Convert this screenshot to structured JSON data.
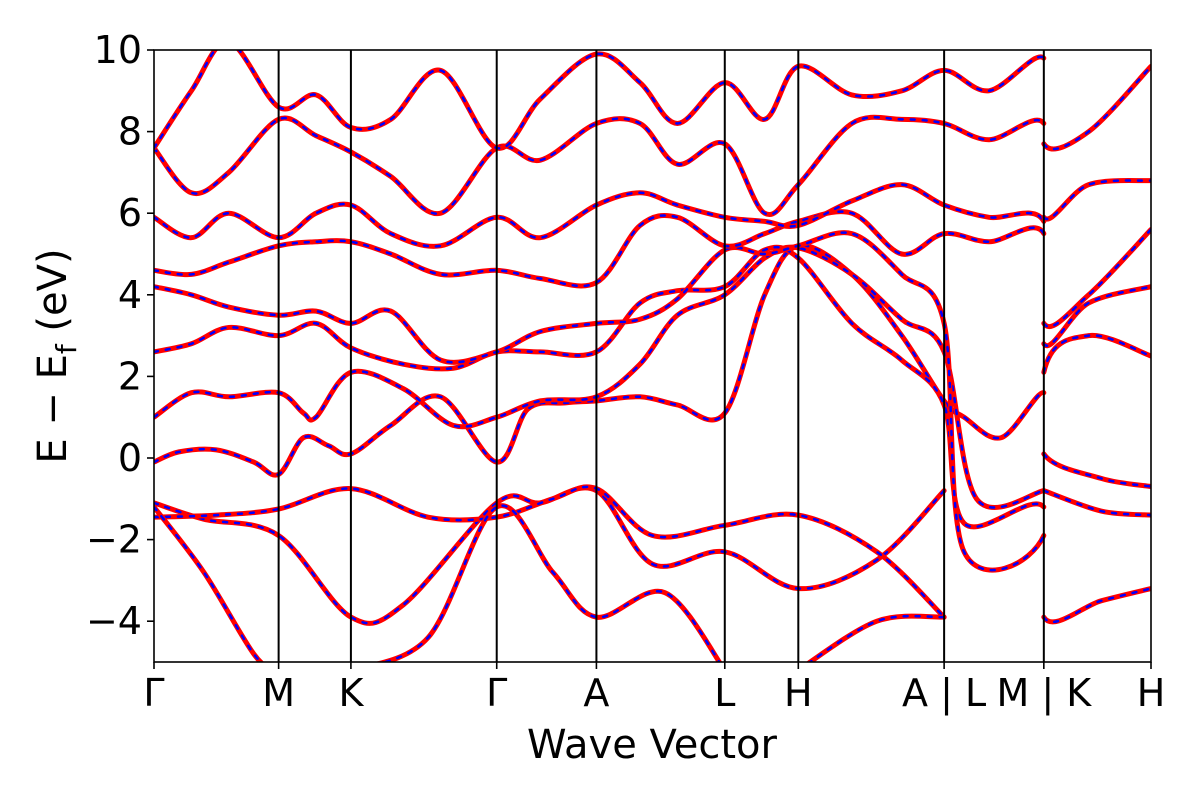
{
  "chart_data": {
    "type": "line",
    "xlabel": "Wave Vector",
    "ylabel": "E − E",
    "ylabel_sub": "f",
    "ylabel_unit": "(eV)",
    "ylim": [
      -5,
      10
    ],
    "xlim": [
      0,
      8
    ],
    "yticks": [
      -4,
      -2,
      0,
      2,
      4,
      6,
      8,
      10
    ],
    "ytick_labels": [
      "−4",
      "−2",
      "0",
      "2",
      "4",
      "6",
      "8",
      "10"
    ],
    "kpoint_labels": [
      "Γ",
      "M",
      "K",
      "Γ",
      "A",
      "L",
      "H",
      "A | L",
      "M | K",
      "H"
    ],
    "kpoint_positions": [
      0,
      1,
      1.58,
      2.75,
      3.55,
      4.58,
      5.17,
      6.34,
      7.14,
      8
    ],
    "grid": false,
    "colors": {
      "primary": "#ff0000",
      "overlay": "#0000ff"
    },
    "series": [
      {
        "points": [
          [
            0,
            -0.1
          ],
          [
            0.2,
            0.15
          ],
          [
            0.5,
            0.2
          ],
          [
            0.8,
            -0.1
          ],
          [
            1,
            -0.4
          ],
          [
            1.2,
            0.5
          ],
          [
            1.4,
            0.3
          ],
          [
            1.58,
            0.1
          ],
          [
            1.9,
            0.8
          ],
          [
            2.3,
            1.5
          ],
          [
            2.75,
            -0.1
          ],
          [
            3.0,
            1.2
          ],
          [
            3.3,
            1.35
          ],
          [
            3.55,
            1.4
          ],
          [
            3.9,
            1.5
          ],
          [
            4.2,
            1.3
          ],
          [
            4.58,
            1.1
          ],
          [
            4.9,
            4.0
          ],
          [
            5.17,
            5.2
          ],
          [
            5.6,
            4.5
          ],
          [
            6.0,
            3.0
          ],
          [
            6.34,
            1.4
          ],
          [
            6.5,
            1.0
          ],
          [
            6.8,
            0.5
          ],
          [
            7.14,
            1.6
          ],
          [
            7.14,
            0.1
          ],
          [
            7.6,
            -0.5
          ],
          [
            8,
            -0.7
          ]
        ]
      },
      {
        "points": [
          [
            0,
            1.0
          ],
          [
            0.3,
            1.6
          ],
          [
            0.6,
            1.5
          ],
          [
            1,
            1.6
          ],
          [
            1.2,
            1.1
          ],
          [
            1.3,
            1.0
          ],
          [
            1.58,
            2.1
          ],
          [
            2.0,
            1.7
          ],
          [
            2.4,
            0.8
          ],
          [
            2.75,
            1.0
          ],
          [
            3.1,
            1.4
          ],
          [
            3.55,
            1.5
          ],
          [
            3.9,
            2.3
          ],
          [
            4.2,
            3.5
          ],
          [
            4.58,
            4.0
          ],
          [
            4.9,
            4.9
          ],
          [
            5.17,
            5.15
          ],
          [
            5.6,
            4.5
          ],
          [
            6.0,
            3.4
          ],
          [
            6.34,
            2.6
          ],
          [
            6.6,
            -1.0
          ],
          [
            7.14,
            -0.8
          ],
          [
            7.14,
            -0.8
          ],
          [
            7.6,
            -1.3
          ],
          [
            8,
            -1.4
          ]
        ]
      },
      {
        "points": [
          [
            0,
            2.6
          ],
          [
            0.3,
            2.8
          ],
          [
            0.6,
            3.2
          ],
          [
            1,
            3.0
          ],
          [
            1.3,
            3.3
          ],
          [
            1.58,
            2.7
          ],
          [
            2.0,
            2.3
          ],
          [
            2.4,
            2.2
          ],
          [
            2.75,
            2.6
          ],
          [
            3.1,
            2.6
          ],
          [
            3.55,
            2.6
          ],
          [
            3.9,
            3.8
          ],
          [
            4.2,
            4.1
          ],
          [
            4.58,
            4.2
          ],
          [
            4.9,
            5.1
          ],
          [
            5.17,
            4.9
          ],
          [
            5.6,
            3.3
          ],
          [
            6.0,
            2.4
          ],
          [
            6.34,
            1.3
          ],
          [
            6.5,
            -1.6
          ],
          [
            7.14,
            -1.2
          ],
          [
            7.14,
            -3.9
          ],
          [
            7.6,
            -3.5
          ],
          [
            8,
            -3.2
          ]
        ]
      },
      {
        "points": [
          [
            0,
            4.2
          ],
          [
            0.3,
            4.0
          ],
          [
            0.6,
            3.7
          ],
          [
            1,
            3.5
          ],
          [
            1.3,
            3.6
          ],
          [
            1.58,
            3.3
          ],
          [
            1.9,
            3.6
          ],
          [
            2.3,
            2.4
          ],
          [
            2.75,
            2.6
          ],
          [
            3.1,
            3.1
          ],
          [
            3.55,
            3.3
          ],
          [
            3.9,
            3.4
          ],
          [
            4.2,
            3.9
          ],
          [
            4.58,
            5.1
          ],
          [
            4.9,
            5.0
          ],
          [
            5.17,
            5.2
          ],
          [
            5.6,
            5.5
          ],
          [
            6.0,
            4.5
          ],
          [
            6.34,
            3.3
          ],
          [
            6.5,
            -2.3
          ],
          [
            7.14,
            -1.9
          ],
          [
            7.14,
            2.1
          ],
          [
            7.5,
            3.0
          ],
          [
            8,
            2.5
          ]
        ]
      },
      {
        "points": [
          [
            0,
            4.6
          ],
          [
            0.3,
            4.5
          ],
          [
            0.6,
            4.8
          ],
          [
            1,
            5.2
          ],
          [
            1.3,
            5.3
          ],
          [
            1.58,
            5.3
          ],
          [
            1.9,
            5.0
          ],
          [
            2.3,
            4.5
          ],
          [
            2.75,
            4.6
          ],
          [
            3.1,
            4.4
          ],
          [
            3.55,
            4.3
          ],
          [
            3.9,
            5.7
          ],
          [
            4.2,
            5.9
          ],
          [
            4.58,
            5.2
          ],
          [
            4.9,
            5.5
          ],
          [
            5.17,
            5.8
          ],
          [
            5.6,
            6.0
          ],
          [
            6.0,
            5.0
          ],
          [
            6.34,
            5.5
          ],
          [
            6.7,
            5.3
          ],
          [
            7.14,
            5.5
          ],
          [
            7.14,
            2.8
          ],
          [
            7.5,
            3.8
          ],
          [
            8,
            4.2
          ]
        ]
      },
      {
        "points": [
          [
            0,
            5.9
          ],
          [
            0.3,
            5.4
          ],
          [
            0.6,
            6.0
          ],
          [
            1,
            5.4
          ],
          [
            1.3,
            6.0
          ],
          [
            1.58,
            6.2
          ],
          [
            1.9,
            5.5
          ],
          [
            2.3,
            5.2
          ],
          [
            2.75,
            5.9
          ],
          [
            3.1,
            5.4
          ],
          [
            3.55,
            6.2
          ],
          [
            3.9,
            6.5
          ],
          [
            4.2,
            6.2
          ],
          [
            4.58,
            5.9
          ],
          [
            4.9,
            5.8
          ],
          [
            5.17,
            5.7
          ],
          [
            5.6,
            6.3
          ],
          [
            6.0,
            6.7
          ],
          [
            6.34,
            6.2
          ],
          [
            6.7,
            5.9
          ],
          [
            7.14,
            5.8
          ],
          [
            7.14,
            3.3
          ],
          [
            7.5,
            4.0
          ],
          [
            8,
            5.6
          ]
        ]
      },
      {
        "points": [
          [
            0,
            7.6
          ],
          [
            0.3,
            6.5
          ],
          [
            0.6,
            7.0
          ],
          [
            1,
            8.3
          ],
          [
            1.3,
            7.9
          ],
          [
            1.58,
            7.5
          ],
          [
            1.9,
            6.9
          ],
          [
            2.3,
            6.0
          ],
          [
            2.75,
            7.6
          ],
          [
            3.1,
            7.3
          ],
          [
            3.55,
            8.2
          ],
          [
            3.9,
            8.2
          ],
          [
            4.2,
            7.2
          ],
          [
            4.58,
            7.7
          ],
          [
            4.9,
            6.0
          ],
          [
            5.17,
            6.7
          ],
          [
            5.6,
            8.2
          ],
          [
            6.0,
            8.3
          ],
          [
            6.34,
            8.2
          ],
          [
            6.7,
            7.8
          ],
          [
            7.14,
            8.2
          ],
          [
            7.14,
            5.9
          ],
          [
            7.5,
            6.7
          ],
          [
            8,
            6.8
          ]
        ]
      },
      {
        "points": [
          [
            0,
            7.6
          ],
          [
            0.3,
            9.0
          ],
          [
            0.6,
            10.2
          ],
          [
            1,
            8.6
          ],
          [
            1.3,
            8.9
          ],
          [
            1.58,
            8.1
          ],
          [
            1.9,
            8.3
          ],
          [
            2.3,
            9.5
          ],
          [
            2.75,
            7.6
          ],
          [
            3.1,
            8.8
          ],
          [
            3.55,
            9.9
          ],
          [
            3.9,
            9.2
          ],
          [
            4.2,
            8.2
          ],
          [
            4.58,
            9.2
          ],
          [
            4.9,
            8.3
          ],
          [
            5.17,
            9.6
          ],
          [
            5.6,
            8.9
          ],
          [
            6.0,
            9.0
          ],
          [
            6.34,
            9.5
          ],
          [
            6.7,
            9.0
          ],
          [
            7.14,
            9.8
          ],
          [
            7.14,
            7.7
          ],
          [
            7.5,
            8.0
          ],
          [
            8,
            9.6
          ]
        ]
      },
      {
        "points": [
          [
            0,
            -1.1
          ],
          [
            0.4,
            -1.5
          ],
          [
            1,
            -1.9
          ],
          [
            1.58,
            -3.9
          ],
          [
            2.0,
            -3.6
          ],
          [
            2.75,
            -1.1
          ],
          [
            3.1,
            -1.1
          ],
          [
            3.55,
            -0.8
          ],
          [
            4.0,
            -2.6
          ],
          [
            4.58,
            -2.3
          ],
          [
            5.17,
            -3.2
          ],
          [
            5.8,
            -2.5
          ],
          [
            6.34,
            -0.8
          ]
        ]
      },
      {
        "points": [
          [
            0,
            -1.45
          ],
          [
            0.5,
            -1.4
          ],
          [
            1,
            -1.25
          ],
          [
            1.58,
            -0.75
          ],
          [
            2.2,
            -1.45
          ],
          [
            2.75,
            -1.45
          ],
          [
            3.2,
            -1.0
          ],
          [
            3.55,
            -0.75
          ],
          [
            4.0,
            -1.9
          ],
          [
            4.58,
            -1.65
          ],
          [
            5.17,
            -1.4
          ],
          [
            5.8,
            -2.3
          ],
          [
            6.34,
            -3.9
          ]
        ]
      },
      {
        "points": [
          [
            0,
            -1.2
          ],
          [
            0.4,
            -2.8
          ],
          [
            0.8,
            -4.8
          ],
          [
            1.0,
            -5.3
          ]
        ]
      },
      {
        "points": [
          [
            1.58,
            -5.2
          ],
          [
            2.2,
            -4.4
          ],
          [
            2.75,
            -1.2
          ],
          [
            3.2,
            -2.8
          ],
          [
            3.55,
            -3.9
          ],
          [
            4.1,
            -3.3
          ],
          [
            4.58,
            -5.2
          ]
        ]
      },
      {
        "points": [
          [
            5.17,
            -5.2
          ],
          [
            5.8,
            -4.0
          ],
          [
            6.34,
            -3.9
          ]
        ]
      }
    ]
  }
}
